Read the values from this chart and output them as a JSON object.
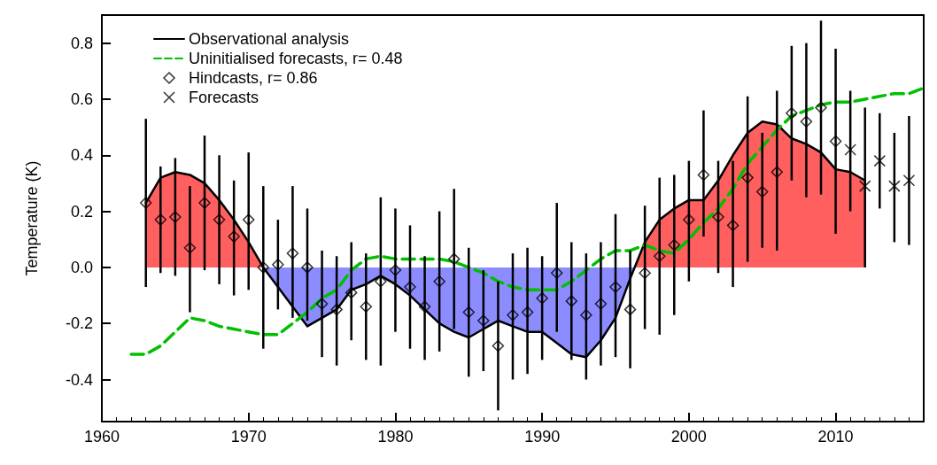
{
  "chart_data": {
    "type": "line",
    "ylabel": "Temperature (K)",
    "xlim": [
      1960,
      2016
    ],
    "xticks": [
      1960,
      1970,
      1980,
      1990,
      2000,
      2010
    ],
    "ylim": [
      -0.55,
      0.9
    ],
    "yticks": [
      -0.4,
      -0.2,
      {
        "value": 0,
        "label": "0.0"
      },
      0.2,
      0.4,
      0.6,
      0.8
    ],
    "legend": "top left",
    "grid": false,
    "series": [
      {
        "type": "area",
        "color": "#ff5f5f",
        "x": [
          1963,
          1964,
          1965,
          1966,
          1967,
          1968,
          1969,
          1970,
          1971,
          1984,
          1996.3,
          1997,
          1998,
          1999,
          2000,
          2001,
          2002,
          2003,
          2004,
          2005,
          2006,
          2007,
          2008,
          2009,
          2010,
          2011,
          2012
        ],
        "values": [
          0.23,
          0.32,
          0.34,
          0.33,
          0.3,
          0.24,
          0.17,
          0.09,
          0.0,
          null,
          0.0,
          0.09,
          0.17,
          0.21,
          0.24,
          0.24,
          0.31,
          0.4,
          0.48,
          0.52,
          0.51,
          0.46,
          0.44,
          0.41,
          0.35,
          0.34,
          0.31
        ]
      },
      {
        "type": "area",
        "color": "#8c8cff",
        "x": [
          1971,
          1972,
          1973,
          1974,
          1975,
          1976,
          1977,
          1978,
          1979,
          1980,
          1981,
          1982,
          1983,
          1984,
          1985,
          1986,
          1987,
          1988,
          1989,
          1990,
          1991,
          1992,
          1993,
          1994,
          1995,
          1996,
          1996.3
        ],
        "values": [
          0.0,
          -0.07,
          -0.14,
          -0.21,
          -0.18,
          -0.15,
          -0.08,
          -0.06,
          -0.03,
          -0.06,
          -0.1,
          -0.15,
          -0.2,
          -0.23,
          -0.25,
          -0.22,
          -0.19,
          -0.21,
          -0.23,
          -0.23,
          -0.27,
          -0.31,
          -0.32,
          -0.26,
          -0.18,
          -0.04,
          0.0
        ]
      },
      {
        "name": "Observational analysis",
        "color": "#000000",
        "line_style": "solid",
        "x": [
          1963,
          1964,
          1965,
          1966,
          1967,
          1968,
          1969,
          1970,
          1971,
          1972,
          1973,
          1974,
          1975,
          1976,
          1977,
          1978,
          1979,
          1980,
          1981,
          1982,
          1983,
          1984,
          1985,
          1986,
          1987,
          1988,
          1989,
          1990,
          1991,
          1992,
          1993,
          1994,
          1995,
          1996,
          1997,
          1998,
          1999,
          2000,
          2001,
          2002,
          2003,
          2004,
          2005,
          2006,
          2007,
          2008,
          2009,
          2010,
          2011,
          2012
        ],
        "values": [
          0.23,
          0.32,
          0.34,
          0.33,
          0.3,
          0.24,
          0.17,
          0.09,
          0.0,
          -0.07,
          -0.14,
          -0.21,
          -0.18,
          -0.15,
          -0.08,
          -0.06,
          -0.03,
          -0.06,
          -0.1,
          -0.15,
          -0.2,
          -0.23,
          -0.25,
          -0.22,
          -0.19,
          -0.21,
          -0.23,
          -0.23,
          -0.27,
          -0.31,
          -0.32,
          -0.26,
          -0.18,
          -0.04,
          0.09,
          0.17,
          0.21,
          0.24,
          0.24,
          0.31,
          0.4,
          0.48,
          0.52,
          0.51,
          0.46,
          0.44,
          0.41,
          0.35,
          0.34,
          0.31
        ]
      },
      {
        "name": "Uninitialised forecasts, r= 0.48",
        "color": "#00c000",
        "line_style": "dashed",
        "x": [
          1962,
          1963,
          1964,
          1965,
          1966,
          1967,
          1968,
          1969,
          1970,
          1971,
          1972,
          1973,
          1974,
          1975,
          1976,
          1977,
          1978,
          1979,
          1980,
          1981,
          1982,
          1983,
          1984,
          1985,
          1986,
          1987,
          1988,
          1989,
          1990,
          1991,
          1992,
          1993,
          1994,
          1995,
          1996,
          1997,
          1998,
          1999,
          2000,
          2001,
          2002,
          2003,
          2004,
          2005,
          2006,
          2007,
          2008,
          2009,
          2010,
          2011,
          2012,
          2013,
          2014,
          2015,
          2016
        ],
        "values": [
          -0.31,
          -0.31,
          -0.28,
          -0.23,
          -0.18,
          -0.19,
          -0.21,
          -0.22,
          -0.23,
          -0.24,
          -0.24,
          -0.2,
          -0.16,
          -0.11,
          -0.08,
          -0.01,
          0.03,
          0.04,
          0.03,
          0.03,
          0.03,
          0.03,
          0.02,
          0.0,
          -0.02,
          -0.05,
          -0.07,
          -0.08,
          -0.08,
          -0.08,
          -0.05,
          -0.01,
          0.03,
          0.06,
          0.06,
          0.08,
          0.06,
          0.05,
          0.1,
          0.16,
          0.21,
          0.28,
          0.37,
          0.43,
          0.49,
          0.54,
          0.56,
          0.58,
          0.59,
          0.59,
          0.6,
          0.61,
          0.62,
          0.62,
          0.64
        ]
      },
      {
        "type": "scatter",
        "name": "Hindcasts, r= 0.86",
        "color": "#000000",
        "marker": "diamond",
        "x": [
          1963,
          1964,
          1965,
          1966,
          1967,
          1968,
          1969,
          1970,
          1971,
          1972,
          1973,
          1974,
          1975,
          1976,
          1977,
          1978,
          1979,
          1980,
          1981,
          1982,
          1983,
          1984,
          1985,
          1986,
          1987,
          1988,
          1989,
          1990,
          1991,
          1992,
          1993,
          1994,
          1995,
          1996,
          1997,
          1998,
          1999,
          2000,
          2001,
          2002,
          2003,
          2004,
          2005,
          2006,
          2007,
          2008,
          2009,
          2010
        ],
        "values": [
          0.23,
          0.17,
          0.18,
          0.07,
          0.23,
          0.17,
          0.11,
          0.17,
          0.0,
          0.01,
          0.05,
          0.0,
          -0.13,
          -0.15,
          -0.09,
          -0.14,
          -0.05,
          -0.01,
          -0.07,
          -0.14,
          -0.05,
          0.03,
          -0.16,
          -0.19,
          -0.28,
          -0.17,
          -0.16,
          -0.11,
          -0.02,
          -0.12,
          -0.17,
          -0.13,
          -0.07,
          -0.15,
          -0.02,
          0.04,
          0.08,
          0.17,
          0.33,
          0.18,
          0.15,
          0.32,
          0.27,
          0.34,
          0.55,
          0.52,
          0.57,
          0.45
        ],
        "errors": [
          [
            -0.07,
            0.53
          ],
          [
            -0.02,
            0.36
          ],
          [
            -0.03,
            0.39
          ],
          [
            -0.16,
            0.29
          ],
          [
            -0.01,
            0.47
          ],
          [
            -0.06,
            0.4
          ],
          [
            -0.1,
            0.31
          ],
          [
            -0.08,
            0.41
          ],
          [
            -0.29,
            0.29
          ],
          [
            -0.15,
            0.17
          ],
          [
            -0.18,
            0.29
          ],
          [
            -0.19,
            0.21
          ],
          [
            -0.32,
            0.06
          ],
          [
            -0.35,
            0.04
          ],
          [
            -0.26,
            0.09
          ],
          [
            -0.33,
            0.05
          ],
          [
            -0.35,
            0.25
          ],
          [
            -0.23,
            0.21
          ],
          [
            -0.29,
            0.15
          ],
          [
            -0.33,
            0.04
          ],
          [
            -0.3,
            0.2
          ],
          [
            -0.22,
            0.28
          ],
          [
            -0.39,
            0.07
          ],
          [
            -0.37,
            -0.01
          ],
          [
            -0.51,
            -0.05
          ],
          [
            -0.4,
            0.05
          ],
          [
            -0.38,
            0.07
          ],
          [
            -0.33,
            0.04
          ],
          [
            -0.23,
            0.23
          ],
          [
            -0.33,
            0.09
          ],
          [
            -0.4,
            0.05
          ],
          [
            -0.35,
            0.09
          ],
          [
            -0.32,
            0.19
          ],
          [
            -0.36,
            0.06
          ],
          [
            -0.22,
            0.22
          ],
          [
            -0.24,
            0.32
          ],
          [
            -0.17,
            0.33
          ],
          [
            -0.05,
            0.38
          ],
          [
            0.11,
            0.56
          ],
          [
            -0.02,
            0.38
          ],
          [
            -0.07,
            0.38
          ],
          [
            0.02,
            0.61
          ],
          [
            0.07,
            0.48
          ],
          [
            0.06,
            0.63
          ],
          [
            0.31,
            0.79
          ],
          [
            0.25,
            0.8
          ],
          [
            0.26,
            0.88
          ],
          [
            0.12,
            0.78
          ]
        ]
      },
      {
        "type": "scatter",
        "name": "Forecasts",
        "color": "#000000",
        "marker": "cross",
        "x": [
          2011,
          2012,
          2013,
          2014,
          2015
        ],
        "values": [
          0.42,
          0.29,
          0.38,
          0.29,
          0.31
        ],
        "errors": [
          [
            0.2,
            0.63
          ],
          [
            0.0,
            0.57
          ],
          [
            0.21,
            0.55
          ],
          [
            0.09,
            0.48
          ],
          [
            0.08,
            0.54
          ]
        ]
      }
    ]
  }
}
